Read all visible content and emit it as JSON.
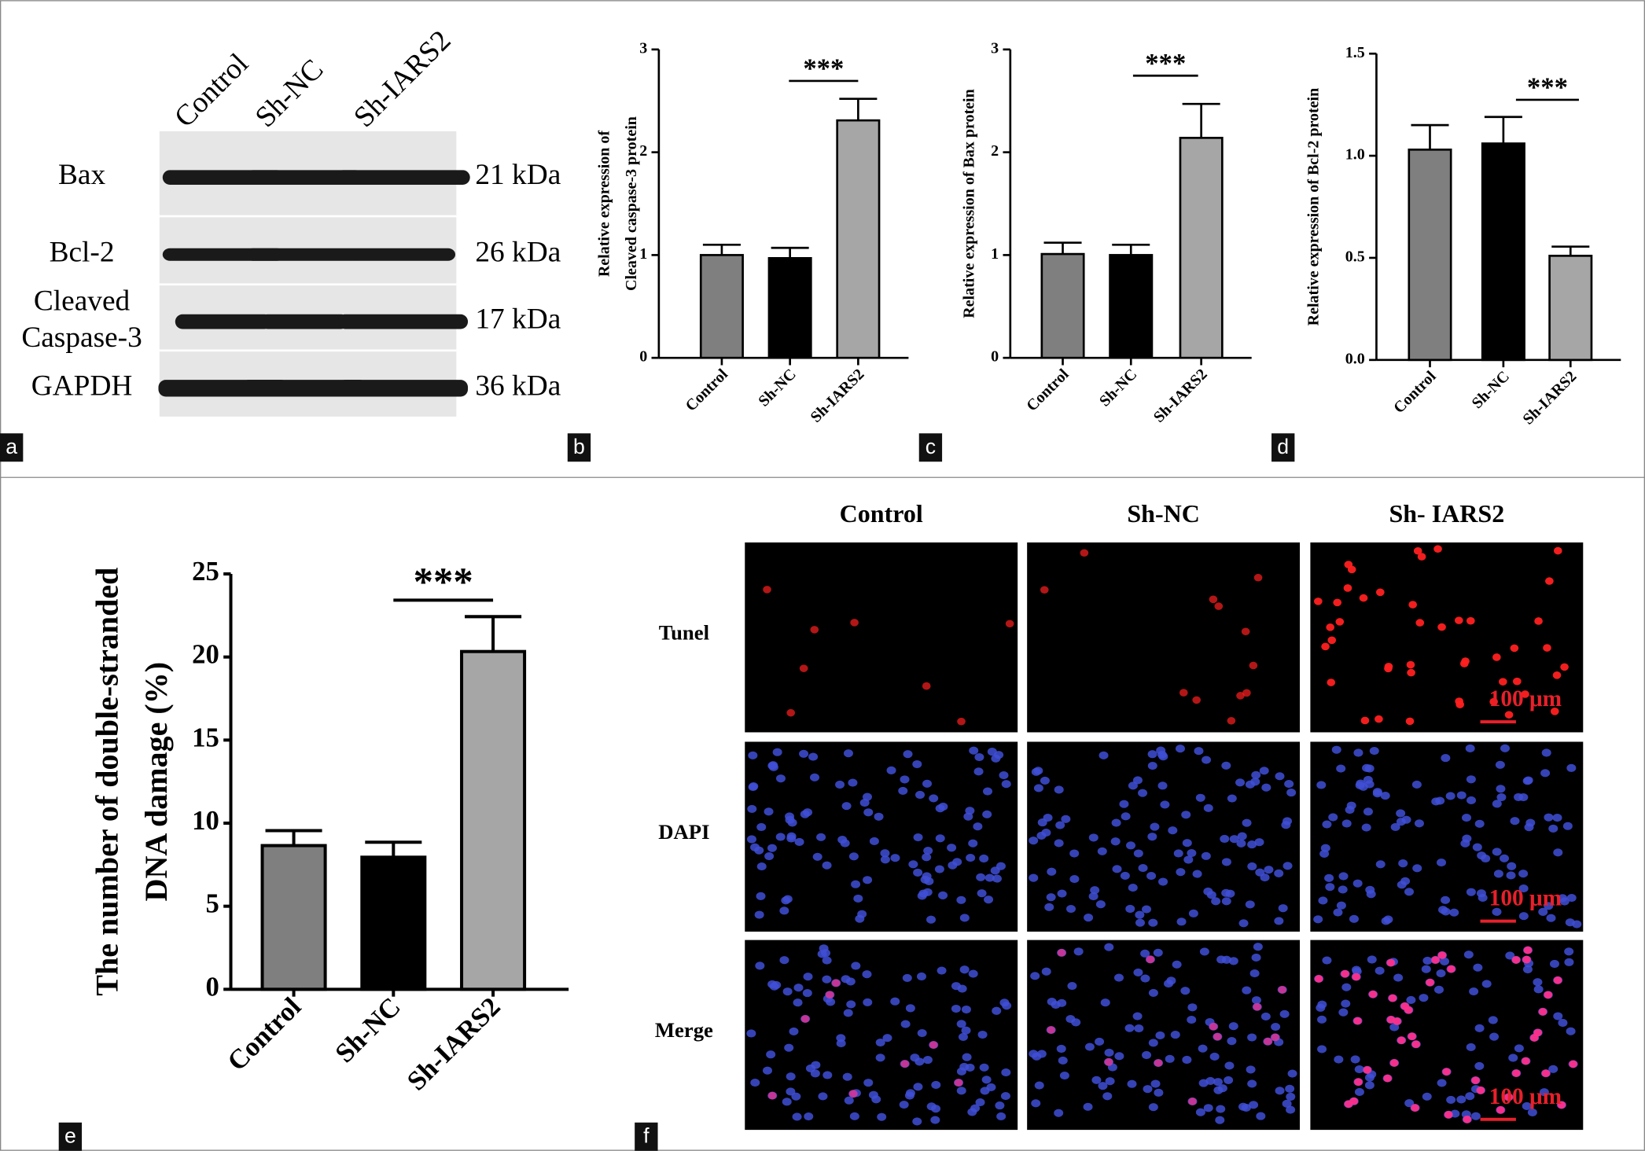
{
  "panel_labels": [
    "a",
    "b",
    "c",
    "d",
    "e",
    "f"
  ],
  "blot": {
    "lanes": [
      "Control",
      "Sh-NC",
      "Sh-IARS2"
    ],
    "rows": [
      {
        "label": [
          "Bax"
        ],
        "size": "21 kDa"
      },
      {
        "label": [
          "Bcl-2"
        ],
        "size": "26 kDa"
      },
      {
        "label": [
          "Cleaved",
          "Caspase-3"
        ],
        "size": "17 kDa"
      },
      {
        "label": [
          "GAPDH"
        ],
        "size": "36 kDa"
      }
    ]
  },
  "chart_data": [
    {
      "type": "bar",
      "ylabel": [
        "Relative expression of",
        "Cleaved caspase-3 protein"
      ],
      "categories": [
        "Control",
        "Sh-NC",
        "Sh-IARS2"
      ],
      "values": [
        1.0,
        0.97,
        2.31
      ],
      "errors": [
        0.1,
        0.1,
        0.21
      ],
      "colors": [
        "#7f7f7f",
        "#000000",
        "#a6a6a6"
      ],
      "ylim": [
        0,
        3
      ],
      "yticks": [
        0,
        1,
        2,
        3
      ],
      "annotation": "***"
    },
    {
      "type": "bar",
      "ylabel": [
        "Relative expression of Bax protein"
      ],
      "categories": [
        "Control",
        "Sh-NC",
        "Sh-IARS2"
      ],
      "values": [
        1.01,
        1.0,
        2.14
      ],
      "errors": [
        0.11,
        0.1,
        0.33
      ],
      "colors": [
        "#7f7f7f",
        "#000000",
        "#a6a6a6"
      ],
      "ylim": [
        0,
        3
      ],
      "yticks": [
        0,
        1,
        2,
        3
      ],
      "annotation": "***"
    },
    {
      "type": "bar",
      "ylabel": [
        "Relative expression of Bcl-2 protein"
      ],
      "categories": [
        "Control",
        "Sh-NC",
        "Sh-IARS2"
      ],
      "values": [
        1.03,
        1.06,
        0.51
      ],
      "errors": [
        0.12,
        0.13,
        0.045
      ],
      "colors": [
        "#7f7f7f",
        "#000000",
        "#a6a6a6"
      ],
      "ylim": [
        0,
        1.5
      ],
      "yticks": [
        {
          "value": 0,
          "label": "0.0"
        },
        0.5,
        {
          "value": 1,
          "label": "1.0"
        },
        1.5
      ],
      "annotation": "***"
    },
    {
      "type": "bar",
      "ylabel": [
        "The number of double-stranded",
        "DNA damage (%)"
      ],
      "categories": [
        "Control",
        "Sh-NC",
        "Sh-IARS2"
      ],
      "values": [
        8.65,
        7.95,
        20.33
      ],
      "errors": [
        0.9,
        0.9,
        2.1
      ],
      "colors": [
        "#7f7f7f",
        "#000000",
        "#a6a6a6"
      ],
      "ylim": [
        0,
        25
      ],
      "yticks": [
        0,
        5,
        10,
        15,
        20,
        25
      ],
      "annotation": "***"
    }
  ],
  "microscopy": {
    "columns": [
      "Control",
      "Sh-NC",
      "Sh- IARS2"
    ],
    "rows": [
      "Tunel",
      "DAPI",
      "Merge"
    ],
    "scale_bar": "100 μm"
  }
}
